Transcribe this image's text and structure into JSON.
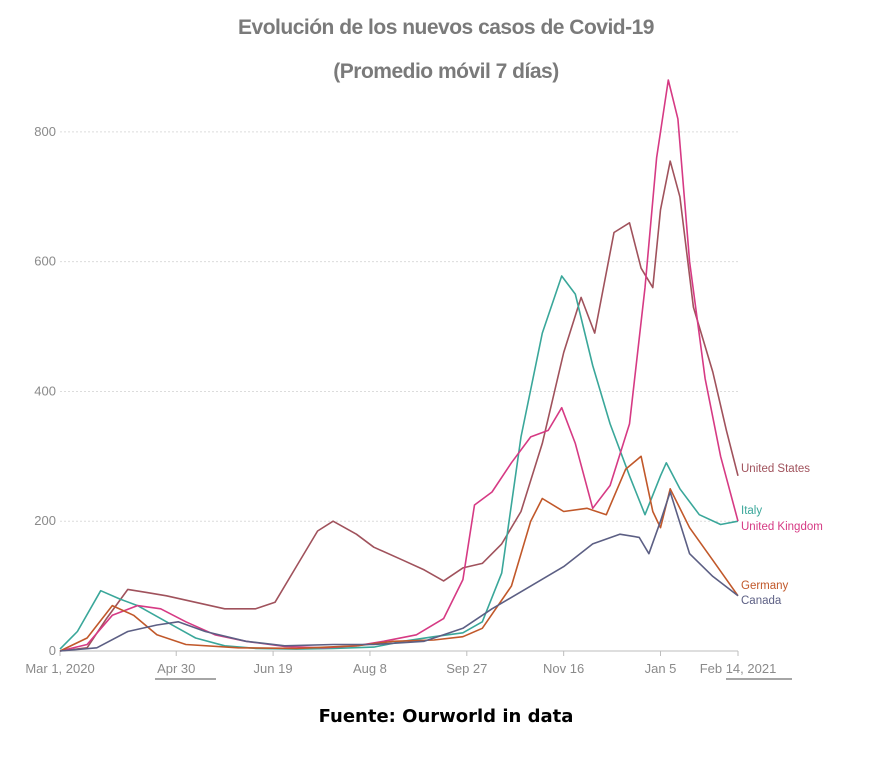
{
  "chart_data": {
    "type": "line",
    "title": "Evolución de los nuevos casos de Covid-19",
    "subtitle": "(Promedio móvil  7 días)",
    "xlabel": "",
    "ylabel": "",
    "x_start": "2020-03-01",
    "x_end": "2021-02-14",
    "x_ticks": [
      {
        "date": "2020-03-01",
        "label": "Mar 1, 2020"
      },
      {
        "date": "2020-04-30",
        "label": "Apr 30"
      },
      {
        "date": "2020-06-19",
        "label": "Jun 19"
      },
      {
        "date": "2020-08-08",
        "label": "Aug 8"
      },
      {
        "date": "2020-09-27",
        "label": "Sep 27"
      },
      {
        "date": "2020-11-16",
        "label": "Nov 16"
      },
      {
        "date": "2021-01-05",
        "label": "Jan 5"
      },
      {
        "date": "2021-02-14",
        "label": "Feb 14, 2021"
      }
    ],
    "y_ticks": [
      0,
      200,
      400,
      600,
      800
    ],
    "ylim": [
      0,
      880
    ],
    "grid": true,
    "series": [
      {
        "name": "United States",
        "color": "#a0525c",
        "points": [
          [
            "2020-03-01",
            0
          ],
          [
            "2020-03-15",
            5
          ],
          [
            "2020-03-25",
            50
          ],
          [
            "2020-04-05",
            95
          ],
          [
            "2020-04-15",
            90
          ],
          [
            "2020-04-25",
            85
          ],
          [
            "2020-05-10",
            75
          ],
          [
            "2020-05-25",
            65
          ],
          [
            "2020-06-10",
            65
          ],
          [
            "2020-06-20",
            75
          ],
          [
            "2020-07-01",
            130
          ],
          [
            "2020-07-12",
            185
          ],
          [
            "2020-07-20",
            200
          ],
          [
            "2020-08-01",
            180
          ],
          [
            "2020-08-10",
            160
          ],
          [
            "2020-08-25",
            140
          ],
          [
            "2020-09-05",
            125
          ],
          [
            "2020-09-15",
            108
          ],
          [
            "2020-09-25",
            128
          ],
          [
            "2020-10-05",
            135
          ],
          [
            "2020-10-15",
            165
          ],
          [
            "2020-10-25",
            215
          ],
          [
            "2020-11-05",
            320
          ],
          [
            "2020-11-16",
            460
          ],
          [
            "2020-11-25",
            545
          ],
          [
            "2020-12-02",
            490
          ],
          [
            "2020-12-12",
            645
          ],
          [
            "2020-12-20",
            660
          ],
          [
            "2020-12-26",
            590
          ],
          [
            "2021-01-01",
            560
          ],
          [
            "2021-01-05",
            680
          ],
          [
            "2021-01-10",
            755
          ],
          [
            "2021-01-15",
            700
          ],
          [
            "2021-01-22",
            530
          ],
          [
            "2021-02-01",
            430
          ],
          [
            "2021-02-08",
            340
          ],
          [
            "2021-02-14",
            270
          ]
        ]
      },
      {
        "name": "Italy",
        "color": "#3aa79a",
        "points": [
          [
            "2020-03-01",
            3
          ],
          [
            "2020-03-10",
            30
          ],
          [
            "2020-03-22",
            93
          ],
          [
            "2020-04-01",
            80
          ],
          [
            "2020-04-10",
            70
          ],
          [
            "2020-04-25",
            45
          ],
          [
            "2020-05-10",
            20
          ],
          [
            "2020-05-25",
            8
          ],
          [
            "2020-06-10",
            4
          ],
          [
            "2020-07-01",
            3
          ],
          [
            "2020-07-20",
            4
          ],
          [
            "2020-08-10",
            6
          ],
          [
            "2020-08-25",
            15
          ],
          [
            "2020-09-10",
            22
          ],
          [
            "2020-09-25",
            28
          ],
          [
            "2020-10-05",
            45
          ],
          [
            "2020-10-15",
            120
          ],
          [
            "2020-10-25",
            330
          ],
          [
            "2020-11-05",
            490
          ],
          [
            "2020-11-15",
            578
          ],
          [
            "2020-11-22",
            550
          ],
          [
            "2020-12-01",
            440
          ],
          [
            "2020-12-10",
            350
          ],
          [
            "2020-12-20",
            270
          ],
          [
            "2020-12-28",
            210
          ],
          [
            "2021-01-05",
            270
          ],
          [
            "2021-01-08",
            290
          ],
          [
            "2021-01-15",
            250
          ],
          [
            "2021-01-25",
            210
          ],
          [
            "2021-02-05",
            195
          ],
          [
            "2021-02-14",
            200
          ]
        ]
      },
      {
        "name": "United Kingdom",
        "color": "#d63a84",
        "points": [
          [
            "2020-03-01",
            0
          ],
          [
            "2020-03-15",
            10
          ],
          [
            "2020-03-28",
            55
          ],
          [
            "2020-04-10",
            70
          ],
          [
            "2020-04-22",
            65
          ],
          [
            "2020-05-05",
            45
          ],
          [
            "2020-05-20",
            25
          ],
          [
            "2020-06-05",
            15
          ],
          [
            "2020-06-25",
            7
          ],
          [
            "2020-07-15",
            5
          ],
          [
            "2020-08-01",
            8
          ],
          [
            "2020-08-15",
            15
          ],
          [
            "2020-09-01",
            25
          ],
          [
            "2020-09-15",
            50
          ],
          [
            "2020-09-25",
            110
          ],
          [
            "2020-10-01",
            225
          ],
          [
            "2020-10-10",
            245
          ],
          [
            "2020-10-20",
            290
          ],
          [
            "2020-10-30",
            330
          ],
          [
            "2020-11-08",
            340
          ],
          [
            "2020-11-15",
            375
          ],
          [
            "2020-11-22",
            320
          ],
          [
            "2020-12-01",
            220
          ],
          [
            "2020-12-10",
            255
          ],
          [
            "2020-12-20",
            350
          ],
          [
            "2020-12-28",
            560
          ],
          [
            "2021-01-03",
            760
          ],
          [
            "2021-01-09",
            880
          ],
          [
            "2021-01-14",
            820
          ],
          [
            "2021-01-20",
            600
          ],
          [
            "2021-01-28",
            420
          ],
          [
            "2021-02-05",
            300
          ],
          [
            "2021-02-14",
            200
          ]
        ]
      },
      {
        "name": "Germany",
        "color": "#c1582a",
        "points": [
          [
            "2020-03-01",
            0
          ],
          [
            "2020-03-15",
            20
          ],
          [
            "2020-03-28",
            70
          ],
          [
            "2020-04-08",
            55
          ],
          [
            "2020-04-20",
            25
          ],
          [
            "2020-05-05",
            10
          ],
          [
            "2020-06-01",
            5
          ],
          [
            "2020-07-01",
            4
          ],
          [
            "2020-08-01",
            8
          ],
          [
            "2020-08-20",
            15
          ],
          [
            "2020-09-10",
            17
          ],
          [
            "2020-09-25",
            22
          ],
          [
            "2020-10-05",
            35
          ],
          [
            "2020-10-20",
            100
          ],
          [
            "2020-10-30",
            200
          ],
          [
            "2020-11-05",
            235
          ],
          [
            "2020-11-16",
            215
          ],
          [
            "2020-11-28",
            220
          ],
          [
            "2020-12-08",
            210
          ],
          [
            "2020-12-18",
            280
          ],
          [
            "2020-12-26",
            300
          ],
          [
            "2021-01-01",
            215
          ],
          [
            "2021-01-05",
            190
          ],
          [
            "2021-01-10",
            250
          ],
          [
            "2021-01-20",
            190
          ],
          [
            "2021-02-01",
            140
          ],
          [
            "2021-02-14",
            85
          ]
        ]
      },
      {
        "name": "Canada",
        "color": "#5c5f84",
        "points": [
          [
            "2020-03-01",
            0
          ],
          [
            "2020-03-20",
            5
          ],
          [
            "2020-04-05",
            30
          ],
          [
            "2020-04-20",
            40
          ],
          [
            "2020-05-01",
            45
          ],
          [
            "2020-05-15",
            30
          ],
          [
            "2020-06-05",
            15
          ],
          [
            "2020-06-25",
            8
          ],
          [
            "2020-07-20",
            10
          ],
          [
            "2020-08-10",
            10
          ],
          [
            "2020-09-05",
            15
          ],
          [
            "2020-09-25",
            35
          ],
          [
            "2020-10-10",
            65
          ],
          [
            "2020-10-30",
            100
          ],
          [
            "2020-11-16",
            130
          ],
          [
            "2020-12-01",
            165
          ],
          [
            "2020-12-15",
            180
          ],
          [
            "2020-12-25",
            175
          ],
          [
            "2020-12-30",
            150
          ],
          [
            "2021-01-05",
            200
          ],
          [
            "2021-01-10",
            245
          ],
          [
            "2021-01-20",
            150
          ],
          [
            "2021-02-01",
            115
          ],
          [
            "2021-02-14",
            85
          ]
        ]
      }
    ],
    "legend": "inline-right",
    "source": "Fuente: Ourworld in data"
  }
}
